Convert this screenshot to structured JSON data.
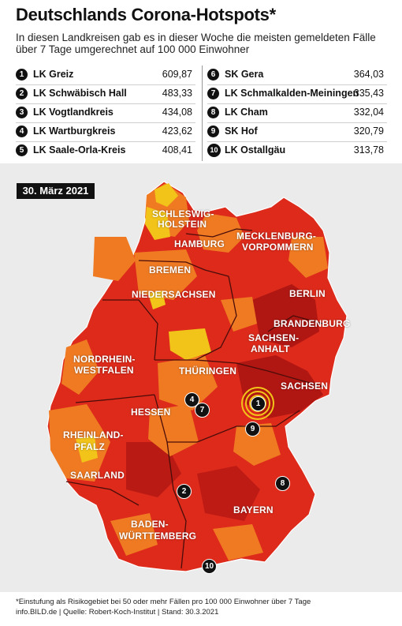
{
  "title": "Deutschlands Corona-Hotspots*",
  "subtitle": "In diesen Landkreisen gab es in dieser Woche die meisten gemeldeten Fälle über 7 Tage umgerechnet auf 100 000 Einwohner",
  "rankings_left": [
    {
      "rank": "1",
      "name": "LK Greiz",
      "value": "609,87"
    },
    {
      "rank": "2",
      "name": "LK Schwäbisch Hall",
      "value": "483,33"
    },
    {
      "rank": "3",
      "name": "LK Vogtlandkreis",
      "value": "434,08"
    },
    {
      "rank": "4",
      "name": "LK Wartburgkreis",
      "value": "423,62"
    },
    {
      "rank": "5",
      "name": "LK Saale-Orla-Kreis",
      "value": "408,41"
    }
  ],
  "rankings_right": [
    {
      "rank": "6",
      "name": "SK Gera",
      "value": "364,03"
    },
    {
      "rank": "7",
      "name": "LK Schmalkalden-Meiningen",
      "value": "335,43"
    },
    {
      "rank": "8",
      "name": "LK Cham",
      "value": "332,04"
    },
    {
      "rank": "9",
      "name": "SK Hof",
      "value": "320,79"
    },
    {
      "rank": "10",
      "name": "LK Ostallgäu",
      "value": "313,78"
    }
  ],
  "date": "30. März 2021",
  "colors": {
    "dark_red": "#b01612",
    "red": "#dd2a1b",
    "orange": "#ef7a22",
    "yellow": "#f2c419"
  },
  "states": {
    "schleswig": "SCHLESWIG-",
    "holstein": "HOLSTEIN",
    "hamburg": "HAMBURG",
    "mecklenburg": "MECKLENBURG-",
    "vorpommern": "VORPOMMERN",
    "bremen": "BREMEN",
    "niedersachsen": "NIEDERSACHSEN",
    "berlin": "BERLIN",
    "brandenburg": "BRANDENBURG",
    "sachsen_anhalt_1": "SACHSEN-",
    "sachsen_anhalt_2": "ANHALT",
    "nrw_1": "NORDRHEIN-",
    "nrw_2": "WESTFALEN",
    "thueringen": "THÜRINGEN",
    "sachsen": "SACHSEN",
    "hessen": "HESSEN",
    "rlp_1": "RHEINLAND-",
    "rlp_2": "PFALZ",
    "saarland": "SAARLAND",
    "bayern": "BAYERN",
    "bw_1": "BADEN-",
    "bw_2": "WÜRTTEMBERG"
  },
  "markers": {
    "m1": "1",
    "m2": "2",
    "m4": "4",
    "m7": "7",
    "m8": "8",
    "m9": "9",
    "m10": "10"
  },
  "footnote": "*Einstufung als Risikogebiet bei 50 oder mehr Fällen pro 100 000 Einwohner über 7 Tage",
  "source": "info.BILD.de | Quelle: Robert-Koch-Institut | Stand: 30.3.2021"
}
